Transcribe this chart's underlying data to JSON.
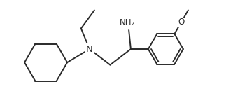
{
  "bg_color": "#ffffff",
  "line_color": "#2a2a2a",
  "line_width": 1.4,
  "font_size": 8.5,
  "font_color": "#2a2a2a",
  "fig_width": 3.53,
  "fig_height": 1.47,
  "dpi": 100,
  "xlim": [
    0.0,
    10.0
  ],
  "ylim": [
    0.0,
    4.2
  ]
}
